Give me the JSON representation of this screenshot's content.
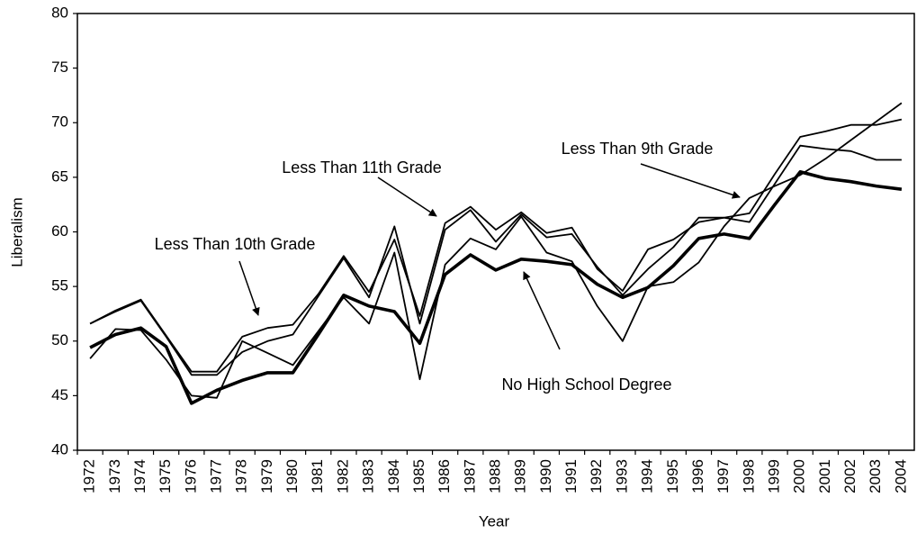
{
  "chart_data": {
    "type": "line",
    "x_label": "Year",
    "y_label": "Liberalism",
    "categories": [
      "1972",
      "1973",
      "1974",
      "1975",
      "1976",
      "1977",
      "1978",
      "1979",
      "1980",
      "1981",
      "1982",
      "1983",
      "1984",
      "1985",
      "1986",
      "1987",
      "1988",
      "1989",
      "1990",
      "1991",
      "1992",
      "1993",
      "1994",
      "1995",
      "1996",
      "1997",
      "1998",
      "1999",
      "2000",
      "2001",
      "2002",
      "2003",
      "2004"
    ],
    "ylim": [
      40,
      80
    ],
    "yticks": [
      40,
      45,
      50,
      55,
      60,
      65,
      70,
      75,
      80
    ],
    "series": [
      {
        "name": "Less Than 10th Grade",
        "color": "#000000",
        "values": [
          51.6,
          52.8,
          53.8,
          50.5,
          47.2,
          47.2,
          50.4,
          51.2,
          51.5,
          54.3,
          57.8,
          54.5,
          59.3,
          52.3,
          60.8,
          62.3,
          60.2,
          61.8,
          59.9,
          60.4,
          56.6,
          54.6,
          58.4,
          59.3,
          60.9,
          61.3,
          61.7,
          65.3,
          68.7,
          69.2,
          69.8,
          69.8,
          70.3
        ]
      },
      {
        "name": "Less Than 11th Grade",
        "color": "#000000",
        "values": [
          51.6,
          52.7,
          53.7,
          50.4,
          46.9,
          46.9,
          49.0,
          50.0,
          50.6,
          54.1,
          57.6,
          54.0,
          60.5,
          51.6,
          60.2,
          62.0,
          59.1,
          61.6,
          59.5,
          59.8,
          56.8,
          54.2,
          56.6,
          58.6,
          61.3,
          61.3,
          60.9,
          64.4,
          67.9,
          67.6,
          67.4,
          66.6,
          66.6
        ]
      },
      {
        "name": "Less Than 9th Grade",
        "color": "#000000",
        "values": [
          48.4,
          51.1,
          51.0,
          48.3,
          45.0,
          44.8,
          50.0,
          48.9,
          47.8,
          50.9,
          54.0,
          51.6,
          58.1,
          46.5,
          57.0,
          59.4,
          58.4,
          61.4,
          58.1,
          57.3,
          53.2,
          50.0,
          55.0,
          55.4,
          57.2,
          60.5,
          63.1,
          64.2,
          65.2,
          66.7,
          68.4,
          70.1,
          71.8
        ]
      },
      {
        "name": "No High School Degree",
        "color": "#000000",
        "values": [
          49.4,
          50.6,
          51.2,
          49.5,
          44.3,
          45.5,
          46.4,
          47.1,
          47.1,
          50.6,
          54.2,
          53.2,
          52.7,
          49.8,
          56.1,
          57.9,
          56.5,
          57.5,
          57.3,
          57.0,
          55.2,
          54.0,
          54.9,
          56.9,
          59.4,
          59.8,
          59.4,
          62.5,
          65.5,
          64.9,
          64.6,
          64.2,
          63.9
        ]
      }
    ]
  }
}
